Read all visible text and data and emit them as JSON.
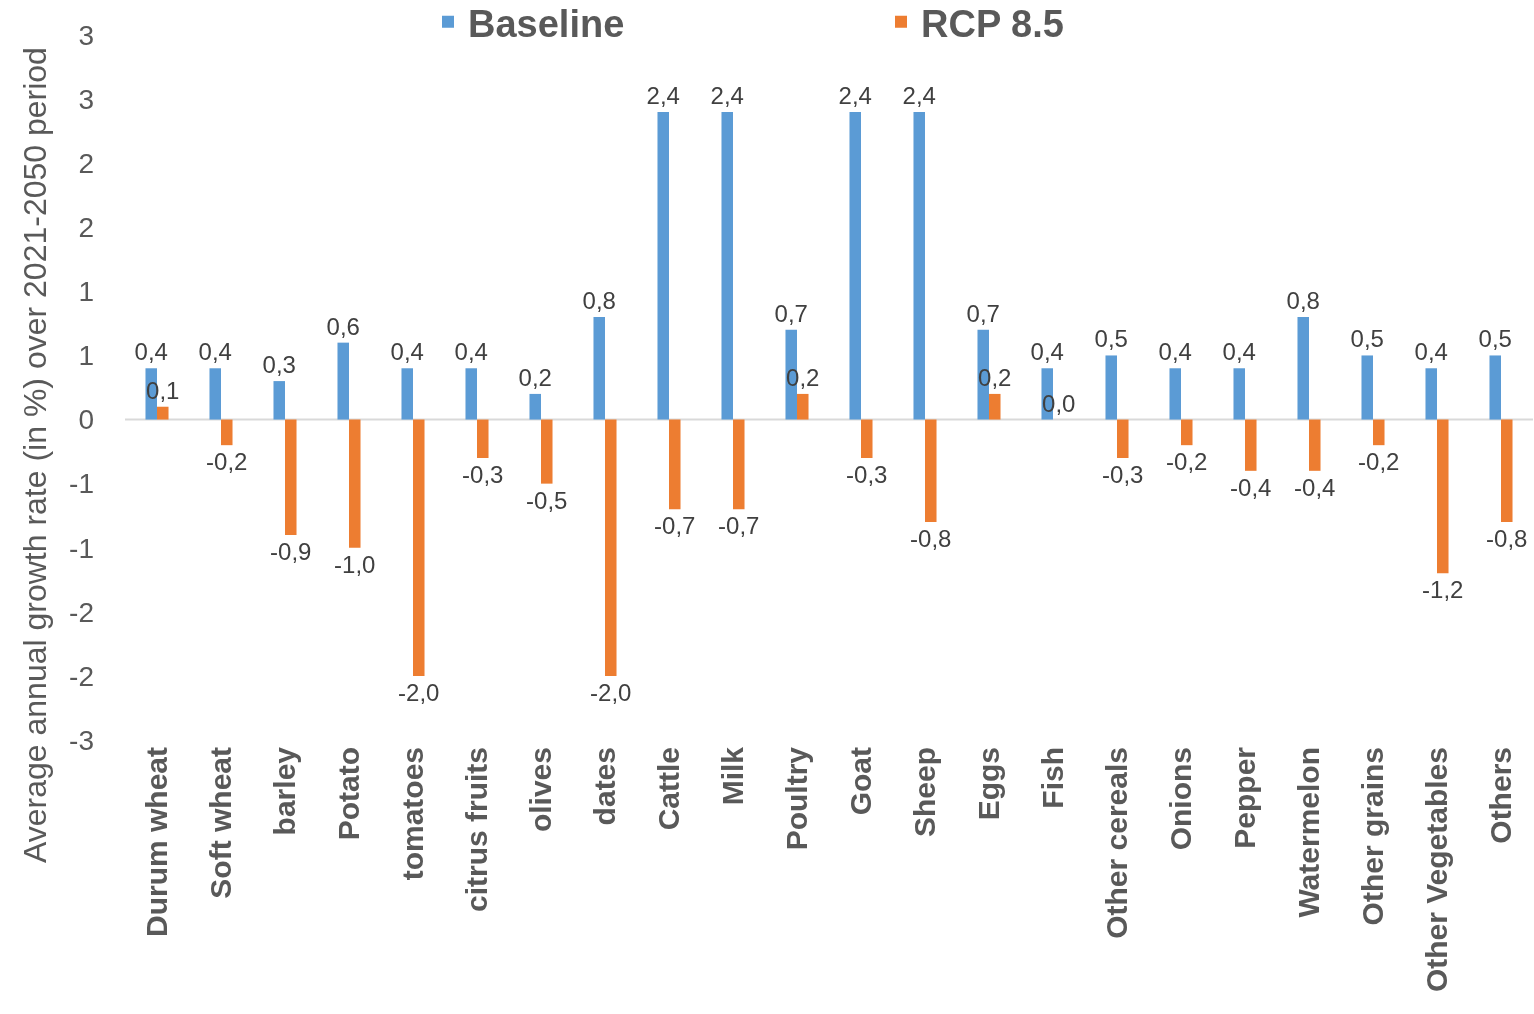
{
  "chart_data": {
    "type": "bar",
    "ylabel": "Average annual growth rate (in %) over 2021-2050 period",
    "categories": [
      "Durum wheat",
      "Soft wheat",
      "barley",
      "Potato",
      "tomatoes",
      "citrus fruits",
      "olives",
      "dates",
      "Cattle",
      "Milk",
      "Poultry",
      "Goat",
      "Sheep",
      "Eggs",
      "Fish",
      "Other cereals",
      "Onions",
      "Pepper",
      "Watermelon",
      "Other grains",
      "Other Vegetables",
      "Others"
    ],
    "series": [
      {
        "name": "Baseline",
        "color": "#5b9bd5",
        "values": [
          0.4,
          0.4,
          0.3,
          0.6,
          0.4,
          0.4,
          0.2,
          0.8,
          2.4,
          2.4,
          0.7,
          2.4,
          2.4,
          0.7,
          0.4,
          0.5,
          0.4,
          0.4,
          0.8,
          0.5,
          0.4,
          0.5
        ],
        "value_labels": [
          "0,4",
          "0,4",
          "0,3",
          "0,6",
          "0,4",
          "0,4",
          "0,2",
          "0,8",
          "2,4",
          "2,4",
          "0,7",
          "2,4",
          "2,4",
          "0,7",
          "0,4",
          "0,5",
          "0,4",
          "0,4",
          "0,8",
          "0,5",
          "0,4",
          "0,5"
        ]
      },
      {
        "name": "RCP 8.5",
        "color": "#ed7d31",
        "values": [
          0.1,
          -0.2,
          -0.9,
          -1.0,
          -2.0,
          -0.3,
          -0.5,
          -2.0,
          -0.7,
          -0.7,
          0.2,
          -0.3,
          -0.8,
          0.2,
          0.0,
          -0.3,
          -0.2,
          -0.4,
          -0.4,
          -0.2,
          -1.2,
          -0.8
        ],
        "value_labels": [
          "0,1",
          "-0,2",
          "-0,9",
          "-1,0",
          "-2,0",
          "-0,3",
          "-0,5",
          "-2,0",
          "-0,7",
          "-0,7",
          "0,2",
          "-0,3",
          "-0,8",
          "0,2",
          "0,0",
          "-0,3",
          "-0,2",
          "-0,4",
          "-0,4",
          "-0,2",
          "-1,2",
          "-0,8"
        ]
      }
    ],
    "ylim": [
      -2.5,
      3.0
    ],
    "yticks": [
      {
        "value": -2.5,
        "label": "-3"
      },
      -2,
      {
        "value": -1.5,
        "label": "-2"
      },
      -1,
      {
        "value": -0.5,
        "label": "-1"
      },
      0,
      {
        "value": 0.5,
        "label": "1"
      },
      1,
      {
        "value": 1.5,
        "label": "2"
      },
      2,
      {
        "value": 2.5,
        "label": "3"
      },
      3
    ],
    "ref_lines": [
      {
        "axis": "y",
        "value": 0,
        "color": "#d9d9d9"
      }
    ],
    "legend": "top"
  }
}
